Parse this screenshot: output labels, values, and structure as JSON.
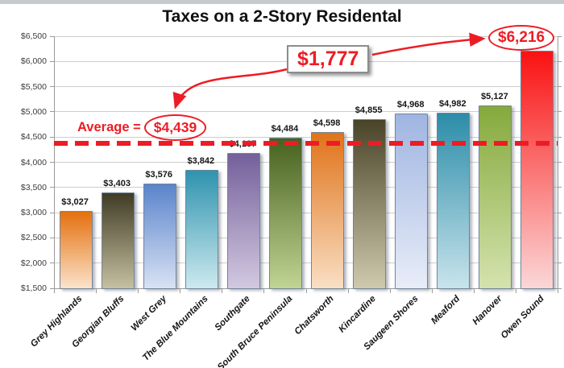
{
  "title": "Taxes on a 2-Story Residental",
  "chart_data": {
    "type": "bar",
    "title": "Taxes on a 2-Story Residental",
    "xlabel": "",
    "ylabel": "",
    "ylim": [
      1500,
      6500
    ],
    "ytick_step": 500,
    "grid": true,
    "legend": false,
    "categories": [
      "Grey Highlands",
      "Georgian Bluffs",
      "West Grey",
      "The Blue Mountains",
      "Southgate",
      "South Bruce Peninsula",
      "Chatsworth",
      "Kincardine",
      "Saugeen Shores",
      "Meaford",
      "Hanover",
      "Owen Sound"
    ],
    "values": [
      3027,
      3403,
      3576,
      3842,
      4187,
      4484,
      4598,
      4855,
      4968,
      4982,
      5127,
      6216
    ],
    "value_labels": [
      "$3,027",
      "$3,403",
      "$3,576",
      "$3,842",
      "$4,187",
      "$4,484",
      "$4,598",
      "$4,855",
      "$4,968",
      "$4,982",
      "$5,127",
      null
    ],
    "yticks": [
      {
        "value": 6500,
        "label": "$6,500"
      },
      {
        "value": 6000,
        "label": "$6,000"
      },
      {
        "value": 5500,
        "label": "$5,500"
      },
      {
        "value": 5000,
        "label": "$5,000"
      },
      {
        "value": 4500,
        "label": "$4,500"
      },
      {
        "value": 4000,
        "label": "$4,000"
      },
      {
        "value": 3500,
        "label": "$3,500"
      },
      {
        "value": 3000,
        "label": "$3,000"
      },
      {
        "value": 2500,
        "label": "$2,500"
      },
      {
        "value": 2000,
        "label": "$2,000"
      },
      {
        "value": 1500,
        "label": "$1,500"
      }
    ],
    "bar_gradients": [
      {
        "top": "#e4700e",
        "bottom": "#fbe3cb"
      },
      {
        "top": "#403b24",
        "bottom": "#c6c0a2"
      },
      {
        "top": "#5b84cb",
        "bottom": "#d9e2f4"
      },
      {
        "top": "#2e93ae",
        "bottom": "#cde9ef"
      },
      {
        "top": "#74609b",
        "bottom": "#d2c9e0"
      },
      {
        "top": "#47611f",
        "bottom": "#c0d494"
      },
      {
        "top": "#e0731a",
        "bottom": "#f9dfc4"
      },
      {
        "top": "#494327",
        "bottom": "#cfc9ae"
      },
      {
        "top": "#9fb5e1",
        "bottom": "#e8edf8"
      },
      {
        "top": "#2c8ca8",
        "bottom": "#c8e4ec"
      },
      {
        "top": "#85a93c",
        "bottom": "#d4e3ae"
      },
      {
        "top": "#fa1212",
        "bottom": "#fbd7d7"
      }
    ],
    "bar_border_color": "#6f8699",
    "average": {
      "value": 4439,
      "prefix": "Average =",
      "value_text": "$4,439",
      "line_color": "#ed1c24",
      "line_style": "dashed"
    },
    "annotations": {
      "gap_text": "$1,777",
      "max_text": "$6,216",
      "accent_color": "#ed1c24"
    }
  }
}
